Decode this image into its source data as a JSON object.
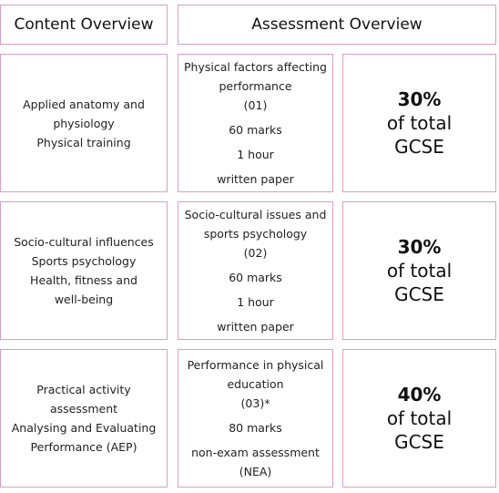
{
  "headers": {
    "content": "Content Overview",
    "assessment": "Assessment Overview"
  },
  "rows": [
    {
      "content": [
        "Applied anatomy and",
        "physiology",
        "Physical training"
      ],
      "assessment": {
        "title": [
          "Physical factors affecting",
          "performance"
        ],
        "code": "(01)",
        "marks": "60 marks",
        "duration": "1 hour",
        "type": "written paper"
      },
      "weight": {
        "percent": "30%",
        "line1": "of total",
        "line2": "GCSE"
      }
    },
    {
      "content": [
        "Socio-cultural influences",
        "Sports psychology",
        "Health, fitness and",
        "well-being"
      ],
      "assessment": {
        "title": [
          "Socio-cultural issues and",
          "sports psychology"
        ],
        "code": "(02)",
        "marks": "60 marks",
        "duration": "1 hour",
        "type": "written paper"
      },
      "weight": {
        "percent": "30%",
        "line1": "of total",
        "line2": "GCSE"
      }
    },
    {
      "content": [
        "Practical activity",
        "assessment",
        "Analysing and Evaluating",
        "Performance (AEP)"
      ],
      "assessment": {
        "title": [
          "Performance in physical",
          "education"
        ],
        "code": "(03)*",
        "marks": "80 marks",
        "duration": "non-exam assessment",
        "type": "(NEA)"
      },
      "weight": {
        "percent": "40%",
        "line1": "of total",
        "line2": "GCSE"
      }
    }
  ],
  "colors": {
    "border": "#d7a0c6"
  }
}
